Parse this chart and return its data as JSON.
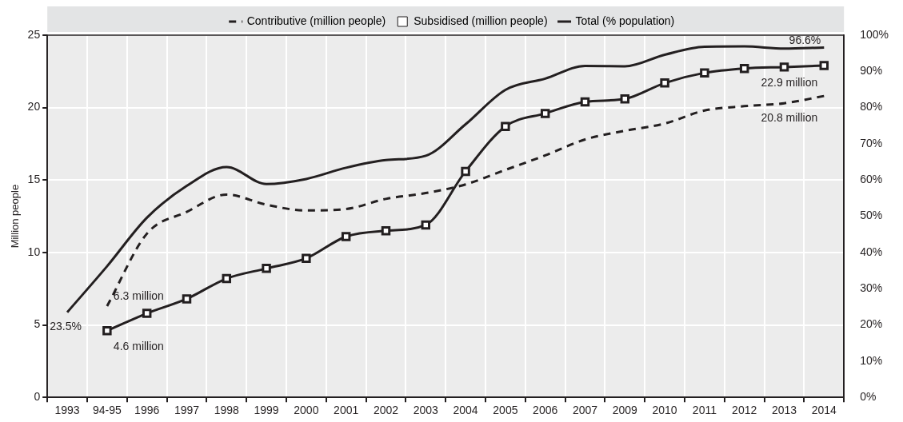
{
  "chart_data": {
    "type": "line",
    "categories": [
      "1993",
      "94-95",
      "1996",
      "1997",
      "1998",
      "1999",
      "2000",
      "2001",
      "2002",
      "2003",
      "2004",
      "2005",
      "2006",
      "2007",
      "2009",
      "2010",
      "2011",
      "2012",
      "2013",
      "2014"
    ],
    "series": [
      {
        "name": "Contributive (million people)",
        "color": "#231f20",
        "line_style": "dashed",
        "marker": "none",
        "values": [
          null,
          6.3,
          11.3,
          12.8,
          14.0,
          13.3,
          12.9,
          13.0,
          13.7,
          14.1,
          14.7,
          15.7,
          16.7,
          17.8,
          18.4,
          18.9,
          19.8,
          20.1,
          20.3,
          20.8
        ],
        "value_labels": [
          null,
          "6.3 million",
          null,
          null,
          null,
          null,
          null,
          null,
          null,
          null,
          null,
          null,
          null,
          null,
          null,
          null,
          null,
          null,
          null,
          "20.8 million"
        ]
      },
      {
        "name": "Subsidised (million people)",
        "color": "#231f20",
        "line_style": "solid",
        "marker": "square",
        "values": [
          null,
          4.6,
          5.8,
          6.8,
          8.2,
          8.9,
          9.6,
          11.1,
          11.5,
          11.9,
          15.6,
          18.7,
          19.6,
          20.4,
          20.6,
          21.7,
          22.4,
          22.7,
          22.8,
          22.9
        ],
        "value_labels": [
          null,
          "4.6 million",
          null,
          null,
          null,
          null,
          null,
          null,
          null,
          null,
          null,
          null,
          null,
          null,
          null,
          null,
          null,
          null,
          null,
          "22.9 million"
        ]
      },
      {
        "name": "Total (% population)",
        "color": "#231f20",
        "line_style": "solid",
        "marker": "none",
        "axis": "y2",
        "values": [
          23.5,
          36.2,
          49.6,
          58.4,
          63.6,
          58.9,
          60.3,
          63.4,
          65.5,
          66.7,
          75.4,
          84.9,
          88.0,
          91.5,
          91.4,
          94.6,
          96.8,
          96.9,
          96.3,
          96.6
        ],
        "value_labels": [
          "23.5%",
          null,
          null,
          null,
          null,
          null,
          null,
          null,
          null,
          null,
          null,
          null,
          null,
          null,
          null,
          null,
          null,
          null,
          null,
          "96.6%"
        ]
      }
    ],
    "ylabel": "Million people",
    "ylim": [
      0,
      25
    ],
    "yticks": [
      0,
      5,
      10,
      15,
      20,
      25
    ],
    "y2lim": [
      0,
      100
    ],
    "y2ticks": [
      {
        "value": 0,
        "label": "0%"
      },
      {
        "value": 10,
        "label": "10%"
      },
      {
        "value": 20,
        "label": "20%"
      },
      {
        "value": 30,
        "label": "30%"
      },
      {
        "value": 40,
        "label": "40%"
      },
      {
        "value": 50,
        "label": "50%"
      },
      {
        "value": 60,
        "label": "60%"
      },
      {
        "value": 70,
        "label": "70%"
      },
      {
        "value": 80,
        "label": "80%"
      },
      {
        "value": 90,
        "label": "90%"
      },
      {
        "value": 100,
        "label": "100%"
      }
    ],
    "grid": true,
    "legend": "top"
  }
}
